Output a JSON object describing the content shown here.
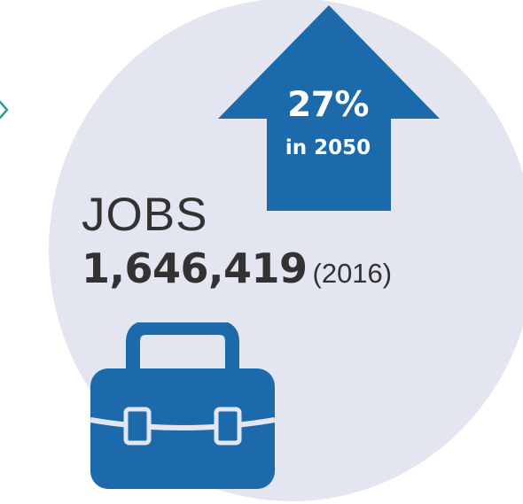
{
  "colors": {
    "circle": "#e3e6f1",
    "accent_blue": "#1c6aac",
    "text_dark": "#323232",
    "edge_green": "#2f9e8f"
  },
  "arrow": {
    "percent": "27%",
    "year_text": "in 2050"
  },
  "jobs": {
    "label": "JOBS",
    "value": "1,646,419",
    "year": "(2016)"
  },
  "icons": {
    "arrow": "up-arrow-icon",
    "briefcase": "briefcase-icon"
  }
}
